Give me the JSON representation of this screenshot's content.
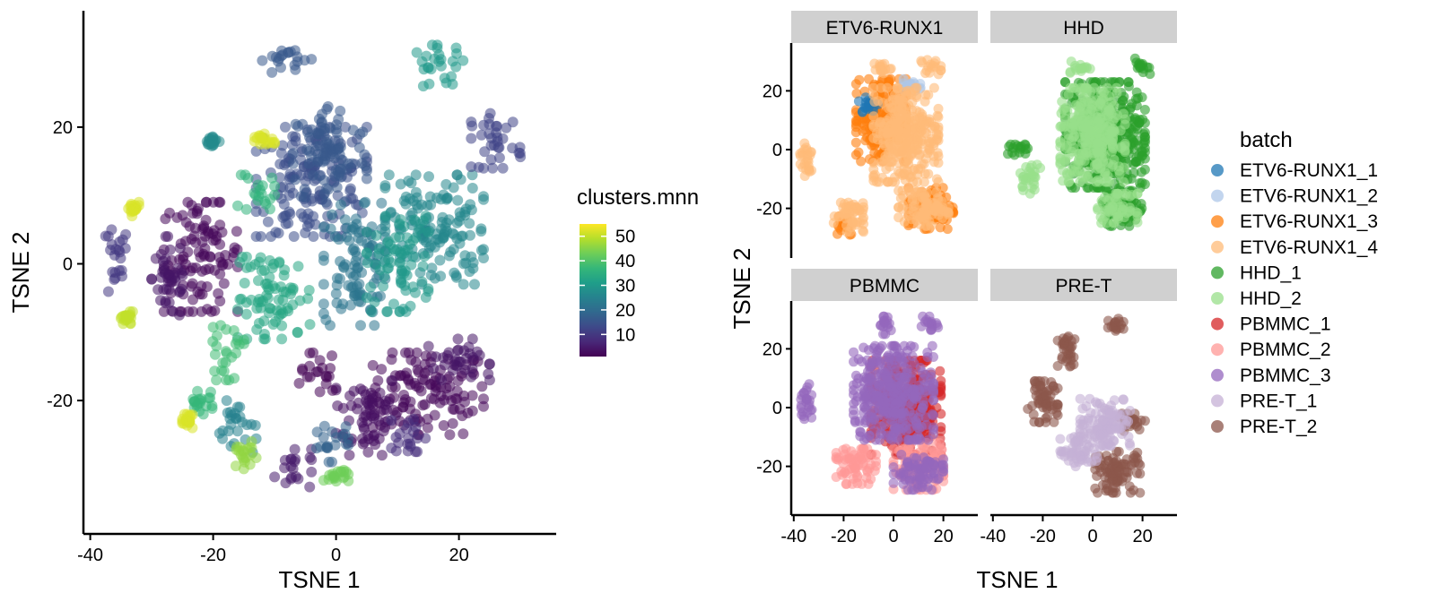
{
  "chart_data": [
    {
      "type": "scatter",
      "xlabel": "TSNE 1",
      "ylabel": "TSNE 2",
      "xlim": [
        -42,
        33
      ],
      "ylim": [
        -37,
        36
      ],
      "xticks": [
        -40,
        -20,
        0,
        20
      ],
      "yticks": [
        -20,
        0,
        20
      ],
      "legend": {
        "title": "clusters.mnn",
        "type": "colorbar",
        "placement": "right",
        "range": [
          1,
          55
        ],
        "ticks": [
          10,
          20,
          30,
          40,
          50
        ],
        "palette": [
          "#440154",
          "#482878",
          "#3e4989",
          "#31688e",
          "#26828e",
          "#1f9e89",
          "#35b779",
          "#6ece58",
          "#b5de2b",
          "#fde725"
        ]
      },
      "groups": [
        {
          "x": 15,
          "y": -19,
          "rx": 9,
          "ry": 6,
          "value": 2
        },
        {
          "x": 5,
          "y": -22,
          "rx": 5,
          "ry": 6,
          "value": 3
        },
        {
          "x": 20,
          "y": -14,
          "rx": 5,
          "ry": 3,
          "value": 4
        },
        {
          "x": -7,
          "y": -30,
          "rx": 3,
          "ry": 3,
          "value": 5
        },
        {
          "x": -22,
          "y": 1,
          "rx": 6,
          "ry": 8,
          "value": 2
        },
        {
          "x": -27,
          "y": -2,
          "rx": 3,
          "ry": 6,
          "value": 4
        },
        {
          "x": -36,
          "y": 0,
          "rx": 2,
          "ry": 5,
          "value": 10
        },
        {
          "x": -3,
          "y": -16,
          "rx": 3,
          "ry": 3,
          "value": 1
        },
        {
          "x": -4,
          "y": 12,
          "rx": 9,
          "ry": 8,
          "value": 14
        },
        {
          "x": -1,
          "y": 16,
          "rx": 6,
          "ry": 7,
          "value": 16
        },
        {
          "x": 3,
          "y": 0,
          "rx": 5,
          "ry": 9,
          "value": 22
        },
        {
          "x": 16,
          "y": 5,
          "rx": 8,
          "ry": 8,
          "value": 26
        },
        {
          "x": 10,
          "y": 0,
          "rx": 5,
          "ry": 7,
          "value": 30
        },
        {
          "x": -10,
          "y": -5,
          "rx": 6,
          "ry": 6,
          "value": 33
        },
        {
          "x": 26,
          "y": 18,
          "rx": 4,
          "ry": 4,
          "value": 12
        },
        {
          "x": 17,
          "y": 29,
          "rx": 4,
          "ry": 3,
          "value": 30
        },
        {
          "x": -8,
          "y": 30,
          "rx": 4,
          "ry": 2,
          "value": 16
        },
        {
          "x": -1,
          "y": -26,
          "rx": 3,
          "ry": 3,
          "value": 18
        },
        {
          "x": 0,
          "y": -31,
          "rx": 2,
          "ry": 1,
          "value": 43
        },
        {
          "x": -16,
          "y": -24,
          "rx": 3,
          "ry": 4,
          "value": 25
        },
        {
          "x": -15,
          "y": -28,
          "rx": 2,
          "ry": 2,
          "value": 46
        },
        {
          "x": -22,
          "y": -20,
          "rx": 2,
          "ry": 2,
          "value": 37
        },
        {
          "x": -24,
          "y": -23,
          "rx": 1,
          "ry": 1,
          "value": 52
        },
        {
          "x": -34,
          "y": -8,
          "rx": 1,
          "ry": 1,
          "value": 50
        },
        {
          "x": -33,
          "y": 8,
          "rx": 1,
          "ry": 1,
          "value": 52
        },
        {
          "x": -12,
          "y": 18,
          "rx": 2,
          "ry": 1,
          "value": 52
        },
        {
          "x": -20,
          "y": 18,
          "rx": 1,
          "ry": 1,
          "value": 27
        },
        {
          "x": -13,
          "y": 10,
          "rx": 3,
          "ry": 3,
          "value": 36
        },
        {
          "x": -18,
          "y": -13,
          "rx": 3,
          "ry": 4,
          "value": 38
        },
        {
          "x": 12,
          "y": -25,
          "rx": 3,
          "ry": 3,
          "value": 8
        }
      ]
    },
    {
      "type": "scatter",
      "xlabel": "TSNE 1",
      "ylabel": "TSNE 2",
      "xlim": [
        -42,
        33
      ],
      "ylim": [
        -37,
        36
      ],
      "xticks": [
        -40,
        -20,
        0,
        20
      ],
      "yticks": [
        -20,
        0,
        20
      ],
      "facets": [
        "ETV6-RUNX1",
        "HHD",
        "PBMMC",
        "PRE-T"
      ],
      "legend": {
        "title": "batch",
        "placement": "right",
        "entries": [
          {
            "label": "ETV6-RUNX1_1",
            "color": "#1f77b4"
          },
          {
            "label": "ETV6-RUNX1_2",
            "color": "#aec7e8"
          },
          {
            "label": "ETV6-RUNX1_3",
            "color": "#ff7f0e"
          },
          {
            "label": "ETV6-RUNX1_4",
            "color": "#ffbb78"
          },
          {
            "label": "HHD_1",
            "color": "#2ca02c"
          },
          {
            "label": "HHD_2",
            "color": "#98df8a"
          },
          {
            "label": "PBMMC_1",
            "color": "#d62728"
          },
          {
            "label": "PBMMC_2",
            "color": "#ff9896"
          },
          {
            "label": "PBMMC_3",
            "color": "#9467bd"
          },
          {
            "label": "PRE-T_1",
            "color": "#c5b0d5"
          },
          {
            "label": "PRE-T_2",
            "color": "#8c564b"
          }
        ]
      },
      "panels": [
        {
          "facet": "ETV6-RUNX1",
          "groups": [
            {
              "x": -5,
              "y": 10,
              "rx": 10,
              "ry": 14,
              "batch": "ETV6-RUNX1_3"
            },
            {
              "x": 15,
              "y": -20,
              "rx": 9,
              "ry": 7,
              "batch": "ETV6-RUNX1_3"
            },
            {
              "x": -20,
              "y": -25,
              "rx": 4,
              "ry": 4,
              "batch": "ETV6-RUNX1_3"
            },
            {
              "x": -10,
              "y": 15,
              "rx": 4,
              "ry": 3,
              "batch": "ETV6-RUNX1_1"
            },
            {
              "x": 8,
              "y": 22,
              "rx": 4,
              "ry": 2,
              "batch": "ETV6-RUNX1_2"
            },
            {
              "x": 5,
              "y": 5,
              "rx": 13,
              "ry": 16,
              "batch": "ETV6-RUNX1_4"
            },
            {
              "x": -5,
              "y": 28,
              "rx": 4,
              "ry": 2,
              "batch": "ETV6-RUNX1_4"
            },
            {
              "x": 15,
              "y": 28,
              "rx": 4,
              "ry": 3,
              "batch": "ETV6-RUNX1_4"
            },
            {
              "x": 12,
              "y": -20,
              "rx": 10,
              "ry": 6,
              "batch": "ETV6-RUNX1_4"
            },
            {
              "x": -18,
              "y": -22,
              "rx": 6,
              "ry": 6,
              "batch": "ETV6-RUNX1_4"
            },
            {
              "x": -35,
              "y": -3,
              "rx": 3,
              "ry": 6,
              "batch": "ETV6-RUNX1_4"
            }
          ]
        },
        {
          "facet": "HHD",
          "groups": [
            {
              "x": 5,
              "y": 5,
              "rx": 16,
              "ry": 18,
              "batch": "HHD_1"
            },
            {
              "x": 12,
              "y": -20,
              "rx": 8,
              "ry": 6,
              "batch": "HHD_1"
            },
            {
              "x": 20,
              "y": 28,
              "rx": 3,
              "ry": 3,
              "batch": "HHD_1"
            },
            {
              "x": -30,
              "y": 0,
              "rx": 4,
              "ry": 3,
              "batch": "HHD_1"
            },
            {
              "x": 0,
              "y": 5,
              "rx": 13,
              "ry": 16,
              "batch": "HHD_2"
            },
            {
              "x": 10,
              "y": -20,
              "rx": 8,
              "ry": 5,
              "batch": "HHD_2"
            },
            {
              "x": -5,
              "y": 28,
              "rx": 4,
              "ry": 2,
              "batch": "HHD_2"
            },
            {
              "x": -25,
              "y": -10,
              "rx": 4,
              "ry": 5,
              "batch": "HHD_2"
            }
          ]
        },
        {
          "facet": "PBMMC",
          "groups": [
            {
              "x": 5,
              "y": 0,
              "rx": 14,
              "ry": 16,
              "batch": "PBMMC_1"
            },
            {
              "x": 10,
              "y": -20,
              "rx": 10,
              "ry": 8,
              "batch": "PBMMC_2"
            },
            {
              "x": -15,
              "y": -20,
              "rx": 8,
              "ry": 6,
              "batch": "PBMMC_2"
            },
            {
              "x": 0,
              "y": 5,
              "rx": 16,
              "ry": 16,
              "batch": "PBMMC_3"
            },
            {
              "x": 10,
              "y": -22,
              "rx": 10,
              "ry": 6,
              "batch": "PBMMC_3"
            },
            {
              "x": -35,
              "y": 2,
              "rx": 3,
              "ry": 6,
              "batch": "PBMMC_3"
            },
            {
              "x": -5,
              "y": 28,
              "rx": 4,
              "ry": 3,
              "batch": "PBMMC_3"
            },
            {
              "x": 15,
              "y": 28,
              "rx": 4,
              "ry": 3,
              "batch": "PBMMC_3"
            }
          ]
        },
        {
          "facet": "PRE-T",
          "groups": [
            {
              "x": -20,
              "y": 2,
              "rx": 6,
              "ry": 7,
              "batch": "PRE-T_2"
            },
            {
              "x": 10,
              "y": -22,
              "rx": 9,
              "ry": 7,
              "batch": "PRE-T_2"
            },
            {
              "x": 15,
              "y": -5,
              "rx": 6,
              "ry": 3,
              "batch": "PRE-T_2"
            },
            {
              "x": -10,
              "y": 20,
              "rx": 4,
              "ry": 6,
              "batch": "PRE-T_2"
            },
            {
              "x": 10,
              "y": 28,
              "rx": 4,
              "ry": 3,
              "batch": "PRE-T_2"
            },
            {
              "x": 5,
              "y": -5,
              "rx": 10,
              "ry": 8,
              "batch": "PRE-T_1"
            },
            {
              "x": -5,
              "y": -15,
              "rx": 8,
              "ry": 5,
              "batch": "PRE-T_1"
            }
          ]
        }
      ]
    }
  ]
}
